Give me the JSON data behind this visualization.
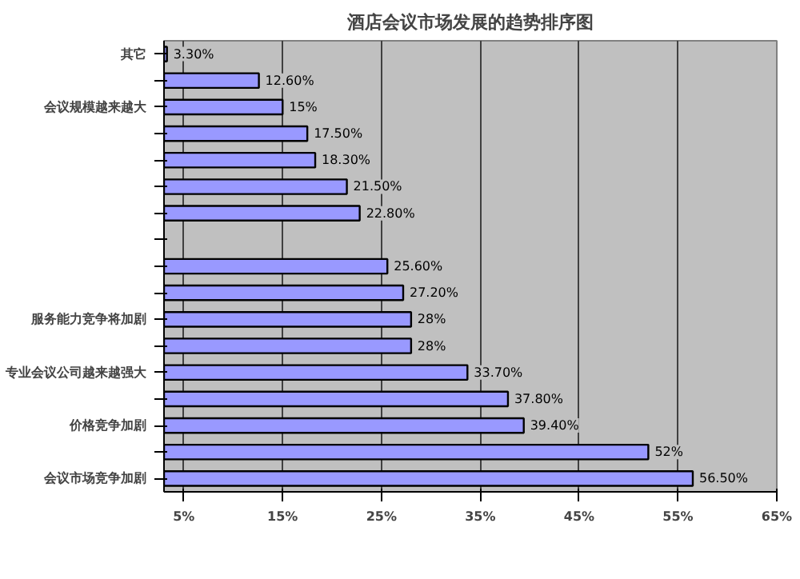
{
  "chart_data": {
    "type": "bar",
    "orientation": "horizontal",
    "title": "酒店会议市场发展的趋势排序图",
    "categories": [
      "其它",
      null,
      "会议规模越来越大",
      null,
      null,
      null,
      null,
      null,
      null,
      null,
      "服务能力竞争将加剧",
      null,
      "专业会议公司越来越强大",
      null,
      "价格竞争加剧",
      null,
      "会议市场竞争加剧"
    ],
    "values": [
      3.3,
      12.6,
      15,
      17.5,
      18.3,
      21.5,
      22.8,
      null,
      25.6,
      27.2,
      28,
      28,
      33.7,
      37.8,
      39.4,
      52,
      56.5
    ],
    "value_labels": [
      "3.30%",
      "12.60%",
      "15%",
      "17.50%",
      "18.30%",
      "21.50%",
      "22.80%",
      null,
      "25.60%",
      "27.20%",
      "28%",
      "28%",
      "33.70%",
      "37.80%",
      "39.40%",
      "52%",
      "56.50%"
    ],
    "color": "#9999ff",
    "xlim": [
      3,
      65
    ],
    "xticks": [
      {
        "value": 5,
        "label": "5%"
      },
      {
        "value": 15,
        "label": "15%"
      },
      {
        "value": 25,
        "label": "25%"
      },
      {
        "value": 35,
        "label": "35%"
      },
      {
        "value": 45,
        "label": "45%"
      },
      {
        "value": 55,
        "label": "55%"
      },
      {
        "value": 65,
        "label": "65%"
      }
    ],
    "grid": "x"
  }
}
